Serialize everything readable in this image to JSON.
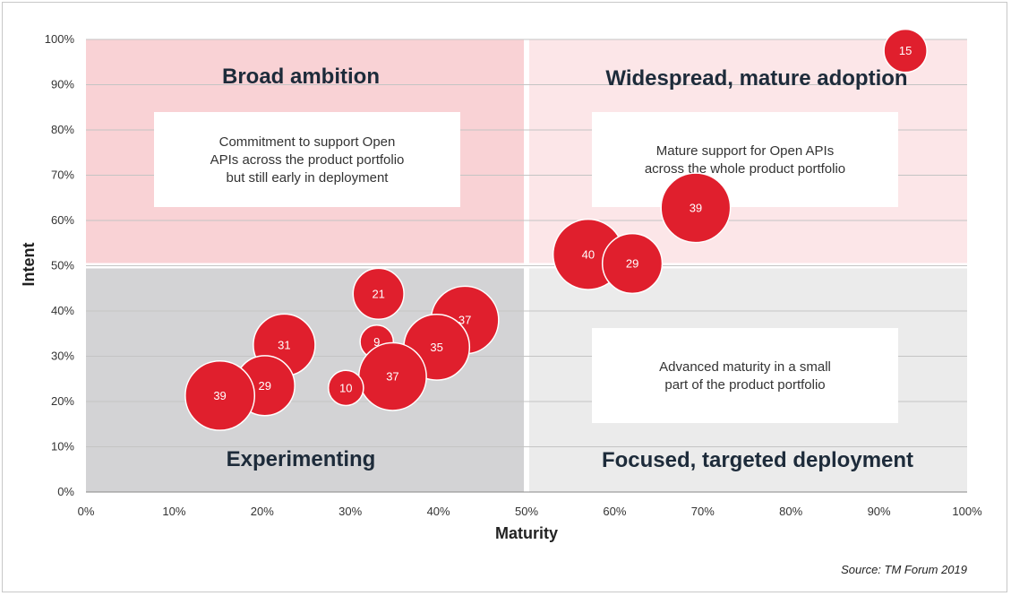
{
  "chart_data": {
    "type": "scatter",
    "title": "",
    "xlabel": "Maturity",
    "ylabel": "Intent",
    "xlim": [
      0,
      100
    ],
    "ylim": [
      0,
      100
    ],
    "x_ticks": [
      "0%",
      "10%",
      "20%",
      "30%",
      "40%",
      "50%",
      "60%",
      "70%",
      "80%",
      "90%",
      "100%"
    ],
    "y_ticks": [
      "0%",
      "10%",
      "20%",
      "30%",
      "40%",
      "50%",
      "60%",
      "70%",
      "80%",
      "90%",
      "100%"
    ],
    "grid": "horizontal",
    "bubble_color": "#e01f2d",
    "quadrants": [
      {
        "id": "broad",
        "title": "Broad ambition",
        "note": [
          "Commitment to support Open",
          "APIs across the product portfolio",
          "but still early in deployment"
        ],
        "color": "#f9d2d5"
      },
      {
        "id": "widespread",
        "title": "Widespread, mature adoption",
        "note": [
          "Mature support for Open APIs",
          "across the whole product portfolio"
        ],
        "color": "#fce6e8"
      },
      {
        "id": "experimenting",
        "title": "Experimenting",
        "note": [],
        "color": "#d3d3d5"
      },
      {
        "id": "focused",
        "title": "Focused, targeted deployment",
        "note": [
          "Advanced maturity in a small",
          "part of the product portfolio"
        ],
        "color": "#ebebeb"
      }
    ],
    "points": [
      {
        "x": 93,
        "y": 97.5,
        "value": 15
      },
      {
        "x": 69.2,
        "y": 62.8,
        "value": 39
      },
      {
        "x": 57,
        "y": 52.5,
        "value": 40
      },
      {
        "x": 62,
        "y": 50.5,
        "value": 29
      },
      {
        "x": 33.2,
        "y": 43.8,
        "value": 21
      },
      {
        "x": 43,
        "y": 38,
        "value": 37
      },
      {
        "x": 22.5,
        "y": 32.5,
        "value": 31
      },
      {
        "x": 33,
        "y": 33.2,
        "value": 9
      },
      {
        "x": 39.8,
        "y": 32,
        "value": 35
      },
      {
        "x": 34.8,
        "y": 25.5,
        "value": 37
      },
      {
        "x": 29.5,
        "y": 23,
        "value": 10
      },
      {
        "x": 20.3,
        "y": 23.5,
        "value": 29
      },
      {
        "x": 15.2,
        "y": 21.3,
        "value": 39
      }
    ]
  },
  "source": "Source: TM Forum 2019"
}
